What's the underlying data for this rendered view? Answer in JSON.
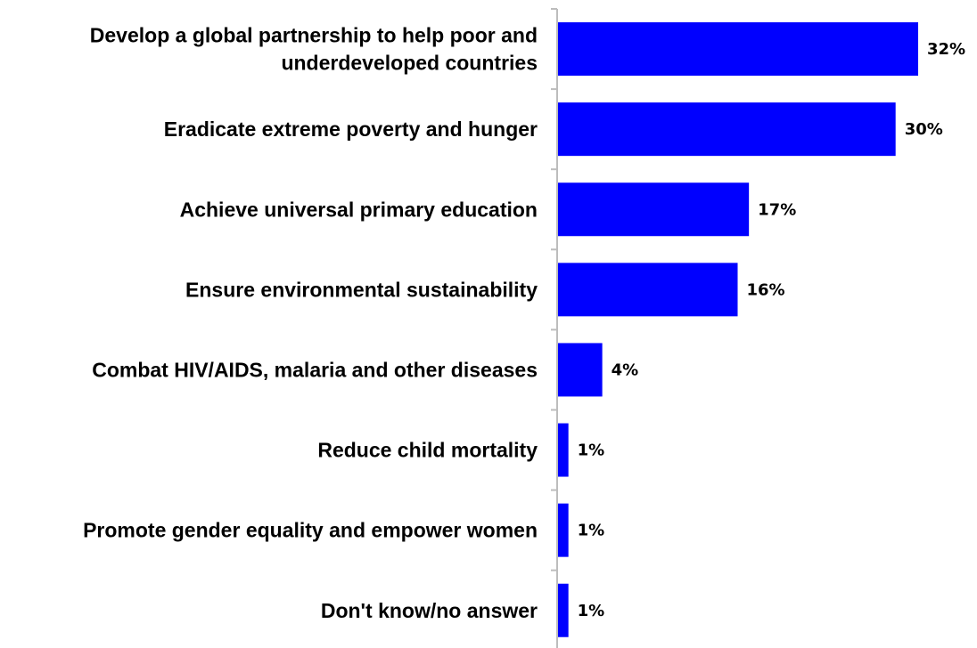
{
  "chart_data": {
    "type": "bar",
    "orientation": "horizontal",
    "categories": [
      [
        "Develop a global partnership to help poor and",
        "underdeveloped countries"
      ],
      [
        "Eradicate extreme poverty and hunger"
      ],
      [
        "Achieve universal primary education"
      ],
      [
        "Ensure environmental sustainability"
      ],
      [
        "Combat HIV/AIDS, malaria and other diseases"
      ],
      [
        "Reduce child mortality"
      ],
      [
        "Promote gender equality and empower women"
      ],
      [
        "Don't know/no answer"
      ]
    ],
    "values": [
      32,
      30,
      17,
      16,
      4,
      1,
      1,
      1
    ],
    "value_labels": [
      "32%",
      "30%",
      "17%",
      "16%",
      "4%",
      "1%",
      "1%",
      "1%"
    ],
    "unit": "%",
    "title": "",
    "xlabel": "",
    "ylabel": "",
    "xlim": [
      0,
      32
    ],
    "grid": false,
    "legend": "none",
    "bar_color": "#0000ff",
    "axis_color": "#bdbdbd"
  }
}
